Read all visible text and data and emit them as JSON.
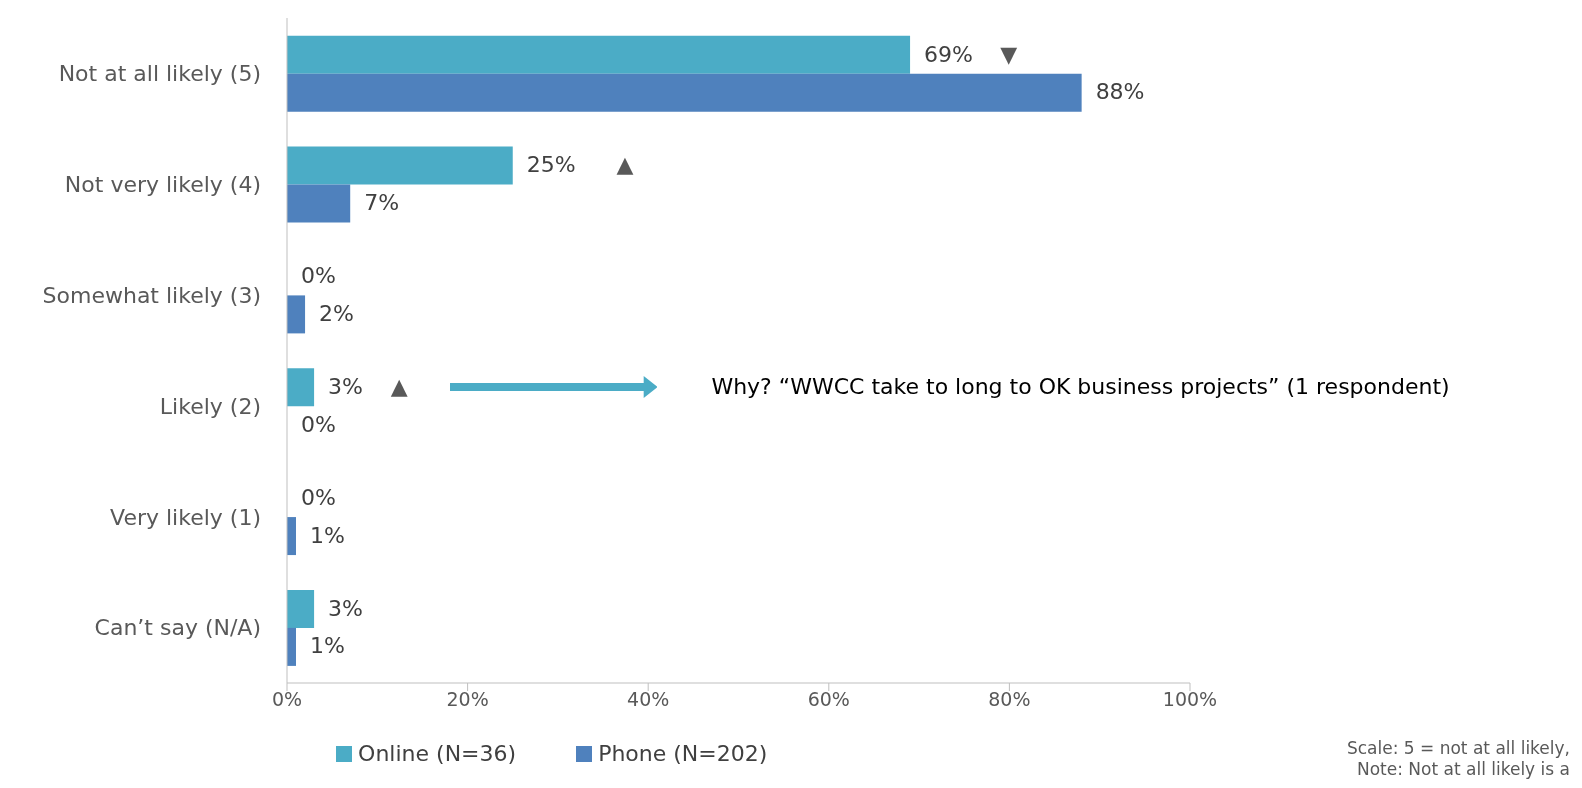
{
  "chart_data": {
    "type": "bar",
    "orientation": "horizontal",
    "categories": [
      "Not at all likely (5)",
      "Not very likely (4)",
      "Somewhat likely (3)",
      "Likely (2)",
      "Very likely (1)",
      "Can’t say (N/A)"
    ],
    "series": [
      {
        "name": "Online (N=36)",
        "color": "#4bacc6",
        "values": [
          69,
          25,
          0,
          3,
          0,
          3
        ],
        "value_labels": [
          "69%",
          "25%",
          "0%",
          "3%",
          "0%",
          "3%"
        ]
      },
      {
        "name": "Phone (N=202)",
        "color": "#4f81bd",
        "values": [
          88,
          7,
          2,
          0,
          1,
          1
        ],
        "value_labels": [
          "88%",
          "7%",
          "2%",
          "0%",
          "1%",
          "1%"
        ]
      }
    ],
    "xlim": [
      0,
      100
    ],
    "xticks": [
      {
        "value": 0,
        "label": "0%"
      },
      {
        "value": 20,
        "label": "20%"
      },
      {
        "value": 40,
        "label": "40%"
      },
      {
        "value": 60,
        "label": "60%"
      },
      {
        "value": 80,
        "label": "80%"
      },
      {
        "value": 100,
        "label": "100%"
      }
    ],
    "legend": "bottom",
    "annotations": [
      "▼",
      "▲",
      "▲",
      "Why? “WWCC take to long to OK business projects” (1 respondent)",
      "Scale: 5 = not at all likely,",
      "Note: Not at all likely is a"
    ]
  }
}
